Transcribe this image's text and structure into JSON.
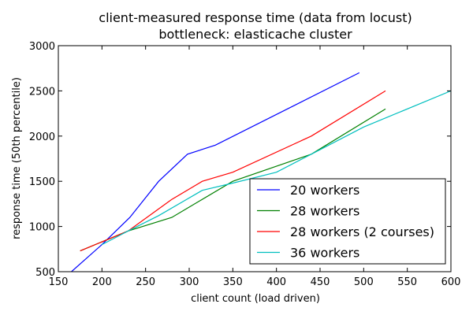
{
  "chart_data": {
    "type": "line",
    "title": "client-measured response time (data from locust)",
    "subtitle": "bottleneck: elasticache cluster",
    "xlabel": "client count (load driven)",
    "ylabel": "response time (50th percentile)",
    "xlim": [
      150,
      600
    ],
    "ylim": [
      500,
      3000
    ],
    "xticks": [
      "150",
      "200",
      "250",
      "300",
      "350",
      "400",
      "450",
      "500",
      "550",
      "600"
    ],
    "yticks": [
      "500",
      "1000",
      "1500",
      "2000",
      "2500",
      "3000"
    ],
    "grid": false,
    "legend_position": "lower-right",
    "series": [
      {
        "name": "20 workers",
        "color": "#0000ff",
        "x": [
          165,
          200,
          232,
          265,
          298,
          330,
          495
        ],
        "y": [
          500,
          800,
          1100,
          1500,
          1800,
          1900,
          2700
        ]
      },
      {
        "name": "28 workers",
        "color": "#008000",
        "x": [
          175,
          230,
          280,
          350,
          440,
          525
        ],
        "y": [
          730,
          950,
          1100,
          1500,
          1800,
          2300
        ]
      },
      {
        "name": "28 workers (2 courses)",
        "color": "#ff0000",
        "x": [
          175,
          230,
          280,
          315,
          350,
          440,
          525
        ],
        "y": [
          730,
          950,
          1300,
          1500,
          1600,
          2000,
          2500
        ]
      },
      {
        "name": "36 workers",
        "color": "#00bfbf",
        "x": [
          200,
          230,
          265,
          315,
          350,
          400,
          440,
          500,
          600
        ],
        "y": [
          800,
          950,
          1120,
          1400,
          1480,
          1600,
          1800,
          2100,
          2500
        ]
      }
    ]
  }
}
